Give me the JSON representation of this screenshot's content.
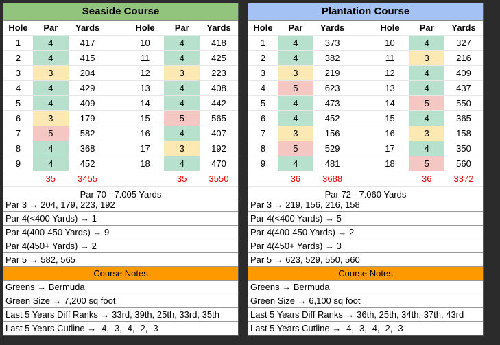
{
  "headers": {
    "hole": "Hole",
    "par": "Par",
    "yards": "Yards"
  },
  "courses": [
    {
      "title": "Seaside Course",
      "front": [
        {
          "hole": "1",
          "par": "4",
          "yards": "417",
          "cls": "p4"
        },
        {
          "hole": "2",
          "par": "4",
          "yards": "415",
          "cls": "p4"
        },
        {
          "hole": "3",
          "par": "3",
          "yards": "204",
          "cls": "p3"
        },
        {
          "hole": "4",
          "par": "4",
          "yards": "429",
          "cls": "p4"
        },
        {
          "hole": "5",
          "par": "4",
          "yards": "409",
          "cls": "p4"
        },
        {
          "hole": "6",
          "par": "3",
          "yards": "179",
          "cls": "p3"
        },
        {
          "hole": "7",
          "par": "5",
          "yards": "582",
          "cls": "p5"
        },
        {
          "hole": "8",
          "par": "4",
          "yards": "368",
          "cls": "p4"
        },
        {
          "hole": "9",
          "par": "4",
          "yards": "452",
          "cls": "p4"
        }
      ],
      "back": [
        {
          "hole": "10",
          "par": "4",
          "yards": "418",
          "cls": "p4"
        },
        {
          "hole": "11",
          "par": "4",
          "yards": "425",
          "cls": "p4"
        },
        {
          "hole": "12",
          "par": "3",
          "yards": "223",
          "cls": "p3"
        },
        {
          "hole": "13",
          "par": "4",
          "yards": "408",
          "cls": "p4"
        },
        {
          "hole": "14",
          "par": "4",
          "yards": "442",
          "cls": "p4"
        },
        {
          "hole": "15",
          "par": "5",
          "yards": "565",
          "cls": "p5"
        },
        {
          "hole": "16",
          "par": "4",
          "yards": "407",
          "cls": "p4"
        },
        {
          "hole": "17",
          "par": "3",
          "yards": "192",
          "cls": "p3"
        },
        {
          "hole": "18",
          "par": "4",
          "yards": "470",
          "cls": "p4"
        }
      ],
      "front_par": "35",
      "front_yards": "3455",
      "back_par": "35",
      "back_yards": "3550",
      "summary": "Par 70 - 7,005 Yards",
      "breakdown": [
        "Par 3 → 204, 179, 223, 192",
        "Par 4(<400 Yards) → 1",
        "Par 4(400-450 Yards) →  9",
        "Par 4(450+ Yards) →  2",
        "Par 5 → 582, 565"
      ],
      "notes_title": "Course Notes",
      "notes": [
        "Greens → Bermuda",
        "Green Size → 7,200 sq foot",
        "Last 5 Years Diff Ranks → 33rd, 39th, 25th, 33rd, 35th",
        "Last 5 Years Cutline → -4, -3, -4, -2, -3"
      ]
    },
    {
      "title": "Plantation Course",
      "front": [
        {
          "hole": "1",
          "par": "4",
          "yards": "373",
          "cls": "p4"
        },
        {
          "hole": "2",
          "par": "4",
          "yards": "382",
          "cls": "p4"
        },
        {
          "hole": "3",
          "par": "3",
          "yards": "219",
          "cls": "p3"
        },
        {
          "hole": "4",
          "par": "5",
          "yards": "623",
          "cls": "p5"
        },
        {
          "hole": "5",
          "par": "4",
          "yards": "473",
          "cls": "p4"
        },
        {
          "hole": "6",
          "par": "4",
          "yards": "452",
          "cls": "p4"
        },
        {
          "hole": "7",
          "par": "3",
          "yards": "156",
          "cls": "p3"
        },
        {
          "hole": "8",
          "par": "5",
          "yards": "529",
          "cls": "p5"
        },
        {
          "hole": "9",
          "par": "4",
          "yards": "481",
          "cls": "p4"
        }
      ],
      "back": [
        {
          "hole": "10",
          "par": "4",
          "yards": "327",
          "cls": "p4"
        },
        {
          "hole": "11",
          "par": "3",
          "yards": "216",
          "cls": "p3"
        },
        {
          "hole": "12",
          "par": "4",
          "yards": "409",
          "cls": "p4"
        },
        {
          "hole": "13",
          "par": "4",
          "yards": "437",
          "cls": "p4"
        },
        {
          "hole": "14",
          "par": "5",
          "yards": "550",
          "cls": "p5"
        },
        {
          "hole": "15",
          "par": "4",
          "yards": "365",
          "cls": "p4"
        },
        {
          "hole": "16",
          "par": "3",
          "yards": "158",
          "cls": "p3"
        },
        {
          "hole": "17",
          "par": "4",
          "yards": "350",
          "cls": "p4"
        },
        {
          "hole": "18",
          "par": "5",
          "yards": "560",
          "cls": "p5"
        }
      ],
      "front_par": "36",
      "front_yards": "3688",
      "back_par": "36",
      "back_yards": "3372",
      "summary": "Par 72 - 7,060 Yards",
      "breakdown": [
        "Par 3 → 219, 156, 216, 158",
        "Par 4(<400 Yards) → 5",
        "Par 4(400-450 Yards) →  2",
        "Par 4(450+ Yards) →  3",
        "Par 5 → 623, 529, 550, 560"
      ],
      "notes_title": "Course Notes",
      "notes": [
        "Greens → Bermuda",
        "Green Size → 6,100 sq foot",
        "Last 5 Years Diff Ranks → 36th, 25th, 34th, 37th, 43rd",
        "Last 5 Years Cutline → -4, -3, -4, -2, -3"
      ]
    }
  ],
  "colors": {
    "par3": "#fce8b2",
    "par4": "#b7e1cd",
    "par5": "#f4c7c3",
    "totals": "#e00000",
    "seaside_header": "#93c47d",
    "plantation_header": "#a4c2f4",
    "notes_header": "#ff9900"
  }
}
